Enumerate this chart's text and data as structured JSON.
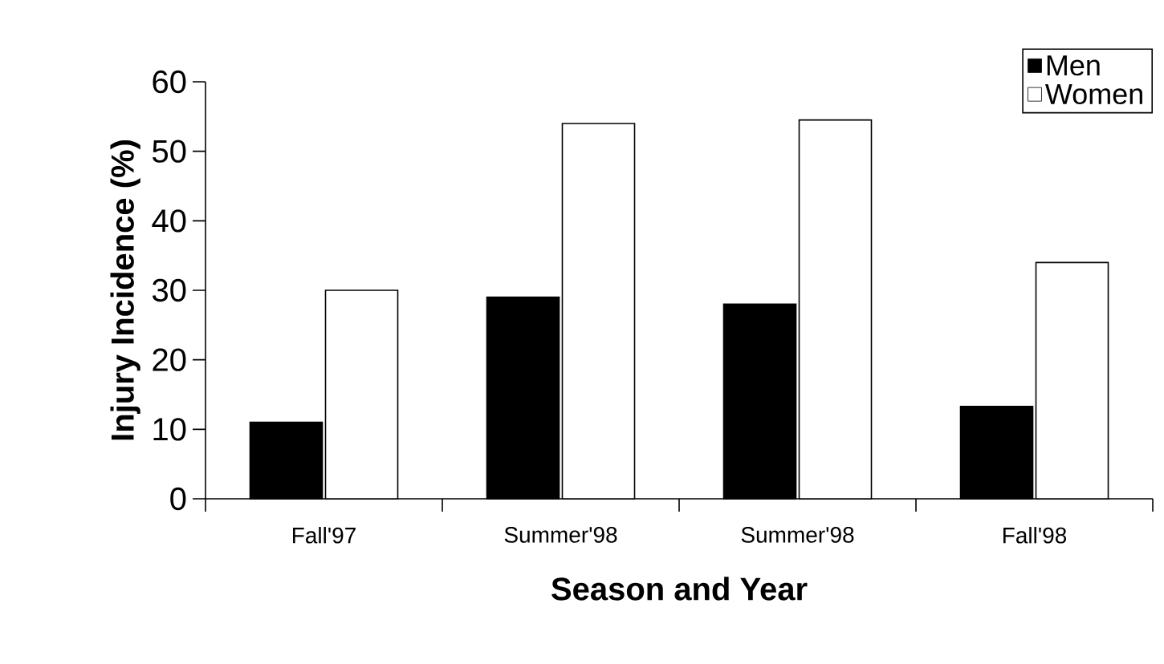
{
  "chart_data": {
    "type": "bar",
    "xlabel": "Season and Year",
    "ylabel": "Injury Incidence (%)",
    "categories": [
      "Fall'97",
      "Summer'98",
      "Summer'98",
      "Fall'98"
    ],
    "series": [
      {
        "name": "Men",
        "color": "#000000",
        "values": [
          11,
          29,
          28,
          13.3
        ]
      },
      {
        "name": "Women",
        "color": "#ffffff",
        "values": [
          30,
          54,
          54.5,
          34
        ]
      }
    ],
    "ylim": [
      0,
      60
    ],
    "yticks": [
      0,
      10,
      20,
      30,
      40,
      50,
      60
    ],
    "legend": "top right",
    "grid": false
  }
}
